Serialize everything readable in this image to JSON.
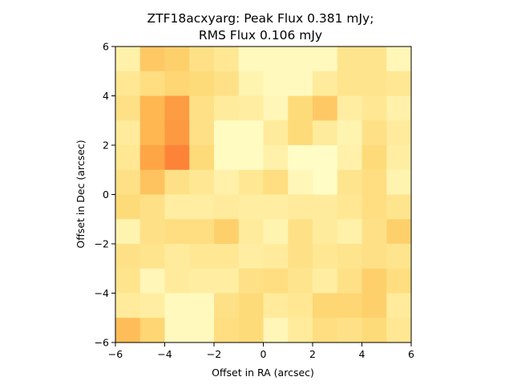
{
  "chart_data": {
    "type": "heatmap",
    "title_lines": [
      "ZTF18acxyarg: Peak Flux 0.381 mJy;",
      "RMS Flux 0.106 mJy"
    ],
    "xlabel": "Offset in RA (arcsec)",
    "ylabel": "Offset in Dec (arcsec)",
    "xlim": [
      -6,
      6
    ],
    "ylim": [
      -6,
      6
    ],
    "xticks": [
      -6,
      -4,
      -2,
      0,
      2,
      4,
      6
    ],
    "yticks": [
      -6,
      -4,
      -2,
      0,
      2,
      4,
      6
    ],
    "xtick_labels": [
      "−6",
      "−4",
      "−2",
      "0",
      "2",
      "4",
      "6"
    ],
    "ytick_labels": [
      "−6",
      "−4",
      "−2",
      "0",
      "2",
      "4",
      "6"
    ],
    "colormap": "YlOrRd",
    "grid": false,
    "rows_top_to_bottom": [
      [
        0.1,
        0.3,
        0.28,
        0.2,
        0.16,
        0.04,
        0.04,
        0.04,
        0.04,
        0.18,
        0.18,
        0.06
      ],
      [
        0.16,
        0.22,
        0.26,
        0.24,
        0.2,
        0.08,
        0.04,
        0.04,
        0.14,
        0.18,
        0.18,
        0.16
      ],
      [
        0.2,
        0.36,
        0.45,
        0.2,
        0.14,
        0.12,
        0.06,
        0.24,
        0.3,
        0.12,
        0.16,
        0.1
      ],
      [
        0.14,
        0.36,
        0.46,
        0.2,
        0.03,
        0.03,
        0.14,
        0.24,
        0.14,
        0.08,
        0.2,
        0.14
      ],
      [
        0.16,
        0.42,
        0.52,
        0.24,
        0.03,
        0.03,
        0.1,
        0.02,
        0.02,
        0.1,
        0.24,
        0.12
      ],
      [
        0.2,
        0.32,
        0.2,
        0.16,
        0.1,
        0.16,
        0.22,
        0.06,
        0.02,
        0.18,
        0.22,
        0.08
      ],
      [
        0.24,
        0.2,
        0.12,
        0.12,
        0.14,
        0.12,
        0.12,
        0.14,
        0.14,
        0.16,
        0.22,
        0.18
      ],
      [
        0.08,
        0.2,
        0.22,
        0.22,
        0.28,
        0.14,
        0.08,
        0.2,
        0.14,
        0.1,
        0.2,
        0.28
      ],
      [
        0.2,
        0.18,
        0.14,
        0.16,
        0.16,
        0.12,
        0.14,
        0.2,
        0.16,
        0.18,
        0.2,
        0.18
      ],
      [
        0.18,
        0.06,
        0.14,
        0.12,
        0.12,
        0.2,
        0.22,
        0.18,
        0.12,
        0.2,
        0.28,
        0.22
      ],
      [
        0.14,
        0.12,
        0.04,
        0.04,
        0.2,
        0.24,
        0.14,
        0.16,
        0.26,
        0.26,
        0.28,
        0.14
      ],
      [
        0.34,
        0.26,
        0.04,
        0.04,
        0.22,
        0.24,
        0.06,
        0.14,
        0.22,
        0.2,
        0.24,
        0.16
      ]
    ]
  }
}
